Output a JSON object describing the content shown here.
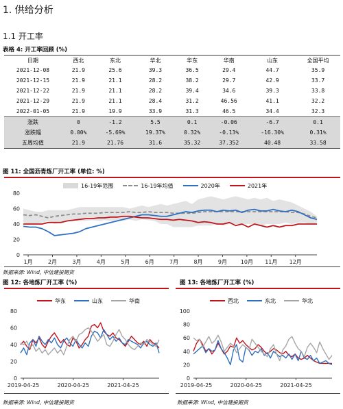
{
  "heading": "1. 供给分析",
  "subheading": "1.1 开工率",
  "table": {
    "caption": "表格 4: 开工率回顾 (%)",
    "headers": [
      "日期",
      "西北",
      "东北",
      "华北",
      "华东",
      "华南",
      "山东",
      "全国平均"
    ],
    "rows": [
      [
        "2021-12-08",
        "21.9",
        "25.6",
        "39.3",
        "36.5",
        "29.4",
        "44.7",
        "35.9"
      ],
      [
        "2021-12-15",
        "21.9",
        "21.1",
        "28.2",
        "38.2",
        "29.7",
        "42.9",
        "33.7"
      ],
      [
        "2021-12-22",
        "21.9",
        "21.1",
        "28.2",
        "39.4",
        "34.6",
        "39.3",
        "33.8"
      ],
      [
        "2021-12-29",
        "21.9",
        "21.1",
        "28.4",
        "31.2",
        "46.56",
        "41.1",
        "32.2"
      ],
      [
        "2022-01-05",
        "21.9",
        "19.9",
        "33.9",
        "31.3",
        "46.5",
        "34.4",
        "32.3"
      ]
    ],
    "summary_rows": [
      [
        "涨跌",
        "0",
        "-1.2",
        "5.5",
        "0.1",
        "-0.06",
        "-6.7",
        "0.1"
      ],
      [
        "涨跌幅",
        "0.00%",
        "-5.69%",
        "19.37%",
        "0.32%",
        "-0.13%",
        "-16.30%",
        "0.31%"
      ],
      [
        "五周均值",
        "21.9",
        "21.76",
        "31.6",
        "35.32",
        "37.352",
        "40.48",
        "33.58"
      ]
    ]
  },
  "figure11": {
    "caption": "图 11: 全国沥青炼厂开工率 (单位: %)",
    "source": "数据来源: Wind, 中信建投期货",
    "legend": [
      {
        "name": "16-19年范围",
        "color": "#d9d9d9",
        "style": "area"
      },
      {
        "name": "16-19年均值",
        "color": "#8c8c8c",
        "style": "dashed"
      },
      {
        "name": "2020年",
        "color": "#2e6fbf",
        "style": "line"
      },
      {
        "name": "2021年",
        "color": "#c0141c",
        "style": "line"
      }
    ]
  },
  "figure12": {
    "caption": "图 12: 各地炼厂开工率 (%)",
    "source": "数据来源: Wind, 中信建投期货",
    "legend": [
      {
        "name": "华东",
        "color": "#c0141c"
      },
      {
        "name": "山东",
        "color": "#2e6fbf"
      },
      {
        "name": "华南",
        "color": "#a6a6a6"
      }
    ]
  },
  "figure13": {
    "caption": "图 13: 各地炼厂开工率 (%)",
    "source": "数据来源: Wind, 中信建投期货",
    "legend": [
      {
        "name": "西北",
        "color": "#c0141c"
      },
      {
        "name": "东北",
        "color": "#2e6fbf"
      },
      {
        "name": "华北",
        "color": "#a6a6a6"
      }
    ]
  },
  "chart_data": [
    {
      "type": "line",
      "xlabel": "",
      "ylabel": "",
      "ylim": [
        0,
        80
      ],
      "yticks": [
        0,
        20,
        40,
        60,
        80
      ],
      "x_ticks": [
        "1月",
        "2月",
        "3月",
        "4月",
        "5月",
        "6月",
        "7月",
        "8月",
        "9月",
        "10月",
        "11月",
        "12月"
      ],
      "series": [
        {
          "name": "16-19年范围",
          "kind": "band",
          "low": [
            42,
            40,
            40,
            42,
            44,
            40,
            42,
            45,
            44,
            44,
            44,
            45,
            44,
            45,
            44,
            45,
            44,
            46,
            44,
            46,
            45,
            44,
            40,
            40,
            36,
            36,
            36,
            36,
            38,
            38,
            38,
            40,
            38,
            40,
            40,
            40,
            40,
            40,
            38,
            40,
            40,
            40,
            42,
            40,
            42,
            42,
            40,
            42
          ],
          "high": [
            60,
            58,
            56,
            56,
            58,
            58,
            58,
            58,
            60,
            62,
            62,
            62,
            62,
            62,
            62,
            62,
            62,
            60,
            62,
            64,
            62,
            64,
            66,
            64,
            66,
            68,
            70,
            66,
            72,
            74,
            76,
            74,
            72,
            74,
            76,
            74,
            72,
            74,
            72,
            74,
            70,
            72,
            70,
            68,
            64,
            60,
            56,
            50
          ]
        },
        {
          "name": "16-19年均值",
          "kind": "dashed",
          "values": [
            52,
            51,
            52,
            50,
            48,
            50,
            51,
            52,
            53,
            53,
            54,
            54,
            54,
            55,
            55,
            55,
            55,
            56,
            55,
            55,
            56,
            55,
            55,
            55,
            54,
            54,
            54,
            54,
            55,
            56,
            56,
            56,
            56,
            56,
            56,
            56,
            56,
            56,
            56,
            56,
            56,
            56,
            56,
            55,
            55,
            53,
            50,
            48
          ]
        },
        {
          "name": "2020年",
          "kind": "line",
          "values": [
            37,
            36,
            36,
            34,
            30,
            25,
            26,
            27,
            28,
            30,
            34,
            36,
            38,
            40,
            42,
            44,
            46,
            48,
            50,
            52,
            52,
            51,
            50,
            50,
            52,
            54,
            56,
            55,
            57,
            58,
            58,
            56,
            58,
            57,
            58,
            55,
            58,
            59,
            57,
            57,
            59,
            57,
            56,
            58,
            56,
            52,
            48,
            46
          ]
        },
        {
          "name": "2021年",
          "kind": "line",
          "values": [
            40,
            40,
            40,
            40,
            42,
            42,
            42,
            44,
            45,
            46,
            47,
            47,
            48,
            48,
            49,
            49,
            50,
            50,
            49,
            48,
            48,
            47,
            46,
            46,
            45,
            46,
            45,
            44,
            42,
            43,
            42,
            40,
            40,
            42,
            38,
            40,
            36,
            40,
            38,
            36,
            38,
            36,
            38,
            38,
            40,
            40,
            40,
            40
          ]
        }
      ]
    },
    {
      "type": "line",
      "xlabel": "",
      "ylabel": "",
      "ylim": [
        0,
        80
      ],
      "yticks": [
        0,
        20,
        40,
        60,
        80
      ],
      "x_ticks": [
        "2019-04-25",
        "2020-04-25",
        "2021-04-25"
      ],
      "series": [
        {
          "name": "华东",
          "values": [
            40,
            44,
            38,
            34,
            46,
            42,
            48,
            40,
            36,
            44,
            50,
            54,
            48,
            42,
            46,
            40,
            38,
            48,
            44,
            36,
            40,
            46,
            50,
            62,
            64,
            60,
            66,
            56,
            52,
            50,
            54,
            48,
            46,
            42,
            38,
            44,
            50,
            46,
            42,
            40,
            44,
            38,
            46,
            42,
            40,
            36
          ]
        },
        {
          "name": "山东",
          "values": [
            30,
            36,
            28,
            42,
            46,
            38,
            50,
            44,
            40,
            46,
            42,
            48,
            40,
            36,
            44,
            48,
            42,
            38,
            46,
            40,
            36,
            42,
            38,
            50,
            56,
            54,
            48,
            58,
            52,
            46,
            50,
            44,
            48,
            42,
            40,
            46,
            44,
            42,
            40,
            36,
            42,
            44,
            40,
            38,
            42,
            30
          ]
        },
        {
          "name": "华南",
          "values": [
            42,
            40,
            44,
            36,
            40,
            32,
            36,
            30,
            34,
            28,
            32,
            36,
            30,
            34,
            28,
            38,
            46,
            50,
            44,
            52,
            54,
            58,
            60,
            56,
            50,
            44,
            48,
            52,
            40,
            38,
            44,
            52,
            58,
            50,
            46,
            40,
            36,
            34,
            38,
            42,
            40,
            46,
            44,
            40,
            38,
            46
          ]
        }
      ]
    },
    {
      "type": "line",
      "xlabel": "",
      "ylabel": "",
      "ylim": [
        0,
        100
      ],
      "yticks": [
        0,
        20,
        40,
        60,
        80,
        100
      ],
      "x_ticks": [
        "2019-04-25",
        "2020-04-25",
        "2021-04-25"
      ],
      "series": [
        {
          "name": "西北",
          "values": [
            40,
            52,
            58,
            50,
            40,
            44,
            36,
            42,
            52,
            44,
            36,
            40,
            48,
            46,
            60,
            52,
            56,
            50,
            46,
            42,
            44,
            50,
            46,
            40,
            36,
            40,
            44,
            42,
            38,
            36,
            40,
            34,
            32,
            36,
            30,
            28,
            30,
            34,
            30,
            26,
            24,
            22,
            22,
            22,
            22,
            22
          ]
        },
        {
          "name": "东北",
          "values": [
            36,
            40,
            44,
            48,
            38,
            44,
            40,
            42,
            56,
            44,
            38,
            30,
            20,
            42,
            50,
            28,
            24,
            46,
            42,
            34,
            40,
            38,
            44,
            34,
            38,
            30,
            40,
            36,
            32,
            34,
            30,
            36,
            28,
            36,
            26,
            40,
            30,
            28,
            34,
            26,
            30,
            22,
            24,
            26,
            22,
            20
          ]
        },
        {
          "name": "华北",
          "values": [
            60,
            56,
            58,
            46,
            54,
            62,
            52,
            56,
            64,
            54,
            40,
            46,
            52,
            48,
            38,
            44,
            50,
            46,
            42,
            58,
            52,
            46,
            40,
            36,
            32,
            44,
            50,
            36,
            26,
            42,
            48,
            58,
            62,
            52,
            44,
            40,
            32,
            46,
            52,
            46,
            38,
            54,
            44,
            36,
            28,
            34
          ]
        }
      ]
    }
  ]
}
